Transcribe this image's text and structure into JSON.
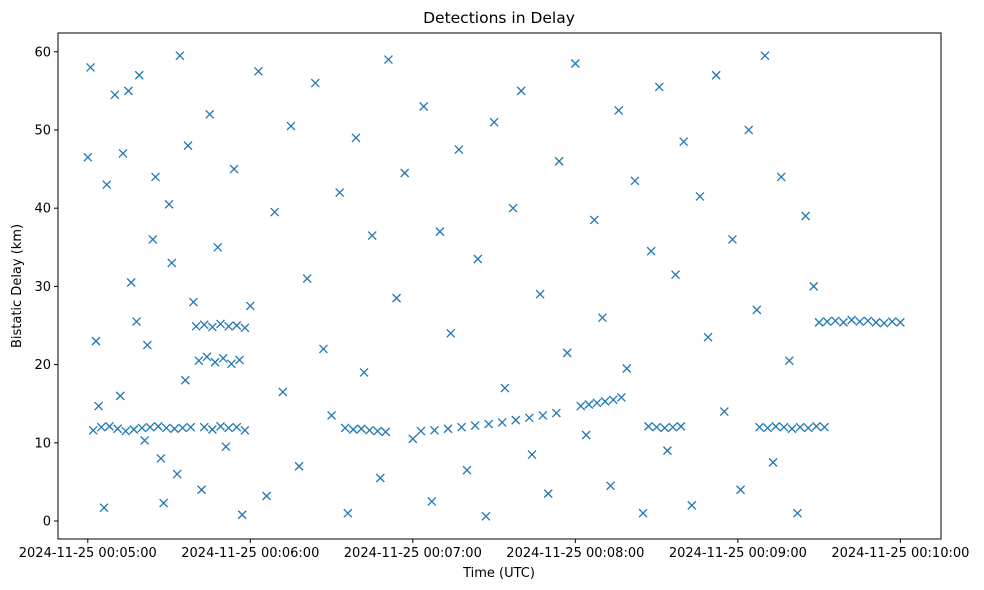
{
  "chart_data": {
    "type": "scatter",
    "title": "Detections in Delay",
    "xlabel": "Time (UTC)",
    "ylabel": "Bistatic Delay (km)",
    "xlim": [
      "2024-11-25 00:04:49",
      "2024-11-25 00:10:15"
    ],
    "ylim": [
      -2.3,
      62.4
    ],
    "x_ticks": [
      "2024-11-25 00:05:00",
      "2024-11-25 00:06:00",
      "2024-11-25 00:07:00",
      "2024-11-25 00:08:00",
      "2024-11-25 00:09:00",
      "2024-11-25 00:10:00"
    ],
    "y_ticks": [
      0,
      10,
      20,
      30,
      40,
      50,
      60
    ],
    "marker": "x",
    "color": "#1f77b4",
    "grid": false,
    "legend": "none",
    "series": [
      {
        "x": [
          "2024-11-25 00:05:02",
          "2024-11-25 00:05:05",
          "2024-11-25 00:05:08",
          "2024-11-25 00:05:11",
          "2024-11-25 00:05:14",
          "2024-11-25 00:05:17",
          "2024-11-25 00:05:20",
          "2024-11-25 00:05:23",
          "2024-11-25 00:05:26",
          "2024-11-25 00:05:29",
          "2024-11-25 00:05:32",
          "2024-11-25 00:05:35",
          "2024-11-25 00:05:38",
          "2024-11-25 00:05:40",
          "2024-11-25 00:05:43",
          "2024-11-25 00:05:46",
          "2024-11-25 00:05:49",
          "2024-11-25 00:05:52",
          "2024-11-25 00:05:55",
          "2024-11-25 00:05:58",
          "2024-11-25 00:05:41",
          "2024-11-25 00:05:44",
          "2024-11-25 00:05:47",
          "2024-11-25 00:05:50",
          "2024-11-25 00:05:53",
          "2024-11-25 00:05:56",
          "2024-11-25 00:05:43",
          "2024-11-25 00:05:46",
          "2024-11-25 00:05:49",
          "2024-11-25 00:05:52",
          "2024-11-25 00:05:55",
          "2024-11-25 00:05:58",
          "2024-11-25 00:06:35",
          "2024-11-25 00:06:38",
          "2024-11-25 00:06:41",
          "2024-11-25 00:06:44",
          "2024-11-25 00:06:47",
          "2024-11-25 00:06:50",
          "2024-11-25 00:07:03",
          "2024-11-25 00:07:08",
          "2024-11-25 00:07:13",
          "2024-11-25 00:07:18",
          "2024-11-25 00:07:23",
          "2024-11-25 00:07:28",
          "2024-11-25 00:07:33",
          "2024-11-25 00:07:38",
          "2024-11-25 00:07:43",
          "2024-11-25 00:07:48",
          "2024-11-25 00:07:53",
          "2024-11-25 00:08:02",
          "2024-11-25 00:08:05",
          "2024-11-25 00:08:08",
          "2024-11-25 00:08:11",
          "2024-11-25 00:08:14",
          "2024-11-25 00:08:17",
          "2024-11-25 00:08:27",
          "2024-11-25 00:08:30",
          "2024-11-25 00:08:33",
          "2024-11-25 00:08:36",
          "2024-11-25 00:08:39",
          "2024-11-25 00:09:08",
          "2024-11-25 00:09:11",
          "2024-11-25 00:09:14",
          "2024-11-25 00:09:17",
          "2024-11-25 00:09:20",
          "2024-11-25 00:09:23",
          "2024-11-25 00:09:26",
          "2024-11-25 00:09:29",
          "2024-11-25 00:09:32",
          "2024-11-25 00:09:30",
          "2024-11-25 00:09:33",
          "2024-11-25 00:09:36",
          "2024-11-25 00:09:39",
          "2024-11-25 00:09:42",
          "2024-11-25 00:09:45",
          "2024-11-25 00:09:48",
          "2024-11-25 00:09:51",
          "2024-11-25 00:09:54",
          "2024-11-25 00:09:57",
          "2024-11-25 00:10:00",
          "2024-11-25 00:05:00",
          "2024-11-25 00:05:01",
          "2024-11-25 00:05:03",
          "2024-11-25 00:05:04",
          "2024-11-25 00:05:06",
          "2024-11-25 00:05:07",
          "2024-11-25 00:05:10",
          "2024-11-25 00:05:12",
          "2024-11-25 00:05:13",
          "2024-11-25 00:05:15",
          "2024-11-25 00:05:16",
          "2024-11-25 00:05:18",
          "2024-11-25 00:05:19",
          "2024-11-25 00:05:21",
          "2024-11-25 00:05:22",
          "2024-11-25 00:05:24",
          "2024-11-25 00:05:25",
          "2024-11-25 00:05:27",
          "2024-11-25 00:05:28",
          "2024-11-25 00:05:30",
          "2024-11-25 00:05:31",
          "2024-11-25 00:05:33",
          "2024-11-25 00:05:34",
          "2024-11-25 00:05:36",
          "2024-11-25 00:05:37",
          "2024-11-25 00:05:39",
          "2024-11-25 00:05:42",
          "2024-11-25 00:05:45",
          "2024-11-25 00:05:48",
          "2024-11-25 00:05:51",
          "2024-11-25 00:05:54",
          "2024-11-25 00:05:57",
          "2024-11-25 00:06:00",
          "2024-11-25 00:06:03",
          "2024-11-25 00:06:06",
          "2024-11-25 00:06:09",
          "2024-11-25 00:06:12",
          "2024-11-25 00:06:15",
          "2024-11-25 00:06:18",
          "2024-11-25 00:06:21",
          "2024-11-25 00:06:24",
          "2024-11-25 00:06:27",
          "2024-11-25 00:06:30",
          "2024-11-25 00:06:33",
          "2024-11-25 00:06:36",
          "2024-11-25 00:06:39",
          "2024-11-25 00:06:42",
          "2024-11-25 00:06:45",
          "2024-11-25 00:06:48",
          "2024-11-25 00:06:51",
          "2024-11-25 00:06:54",
          "2024-11-25 00:06:57",
          "2024-11-25 00:07:00",
          "2024-11-25 00:07:04",
          "2024-11-25 00:07:07",
          "2024-11-25 00:07:10",
          "2024-11-25 00:07:14",
          "2024-11-25 00:07:17",
          "2024-11-25 00:07:20",
          "2024-11-25 00:07:24",
          "2024-11-25 00:07:27",
          "2024-11-25 00:07:30",
          "2024-11-25 00:07:34",
          "2024-11-25 00:07:37",
          "2024-11-25 00:07:40",
          "2024-11-25 00:07:44",
          "2024-11-25 00:07:47",
          "2024-11-25 00:07:50",
          "2024-11-25 00:07:54",
          "2024-11-25 00:07:57",
          "2024-11-25 00:08:00",
          "2024-11-25 00:08:04",
          "2024-11-25 00:08:07",
          "2024-11-25 00:08:10",
          "2024-11-25 00:08:13",
          "2024-11-25 00:08:16",
          "2024-11-25 00:08:19",
          "2024-11-25 00:08:22",
          "2024-11-25 00:08:25",
          "2024-11-25 00:08:28",
          "2024-11-25 00:08:31",
          "2024-11-25 00:08:34",
          "2024-11-25 00:08:37",
          "2024-11-25 00:08:40",
          "2024-11-25 00:08:43",
          "2024-11-25 00:08:46",
          "2024-11-25 00:08:49",
          "2024-11-25 00:08:52",
          "2024-11-25 00:08:55",
          "2024-11-25 00:08:58",
          "2024-11-25 00:09:01",
          "2024-11-25 00:09:04",
          "2024-11-25 00:09:07",
          "2024-11-25 00:09:10",
          "2024-11-25 00:09:13",
          "2024-11-25 00:09:16",
          "2024-11-25 00:09:19",
          "2024-11-25 00:09:22",
          "2024-11-25 00:09:25",
          "2024-11-25 00:09:28"
        ],
        "y": [
          11.6,
          12.0,
          12.1,
          11.8,
          11.5,
          11.7,
          11.9,
          12.0,
          12.1,
          11.9,
          11.8,
          11.9,
          12.0,
          24.9,
          25.1,
          24.8,
          25.2,
          24.9,
          25.0,
          24.7,
          20.5,
          21.0,
          20.3,
          20.8,
          20.1,
          20.6,
          12.0,
          11.7,
          12.1,
          11.9,
          12.0,
          11.6,
          11.9,
          11.7,
          11.8,
          11.6,
          11.5,
          11.4,
          11.5,
          11.6,
          11.8,
          12.0,
          12.2,
          12.4,
          12.6,
          12.9,
          13.2,
          13.5,
          13.8,
          14.7,
          14.9,
          15.1,
          15.3,
          15.5,
          15.8,
          12.1,
          12.0,
          11.9,
          12.0,
          12.1,
          12.0,
          11.9,
          12.1,
          12.0,
          11.8,
          12.0,
          11.9,
          12.1,
          12.0,
          25.4,
          25.5,
          25.6,
          25.4,
          25.7,
          25.5,
          25.6,
          25.4,
          25.3,
          25.5,
          25.4,
          46.5,
          58.0,
          23.0,
          14.7,
          1.7,
          43.0,
          54.5,
          16.0,
          47.0,
          55.0,
          30.5,
          25.5,
          57.0,
          10.3,
          22.5,
          36.0,
          44.0,
          8.0,
          2.3,
          40.5,
          33.0,
          6.0,
          59.5,
          18.0,
          48.0,
          28.0,
          4.0,
          52.0,
          35.0,
          9.5,
          45.0,
          0.8,
          27.5,
          57.5,
          3.2,
          39.5,
          16.5,
          50.5,
          7.0,
          31.0,
          56.0,
          22.0,
          13.5,
          42.0,
          1.0,
          49.0,
          19.0,
          36.5,
          5.5,
          59.0,
          28.5,
          44.5,
          10.5,
          53.0,
          2.5,
          37.0,
          24.0,
          47.5,
          6.5,
          33.5,
          0.6,
          51.0,
          17.0,
          40.0,
          55.0,
          8.5,
          29.0,
          3.5,
          46.0,
          21.5,
          58.5,
          11.0,
          38.5,
          26.0,
          4.5,
          52.5,
          19.5,
          43.5,
          1.0,
          34.5,
          55.5,
          9.0,
          31.5,
          48.5,
          2.0,
          41.5,
          23.5,
          57.0,
          14.0,
          36.0,
          4.0,
          50.0,
          27.0,
          59.5,
          7.5,
          44.0,
          20.5,
          1.0,
          39.0,
          30.0
        ]
      }
    ]
  }
}
